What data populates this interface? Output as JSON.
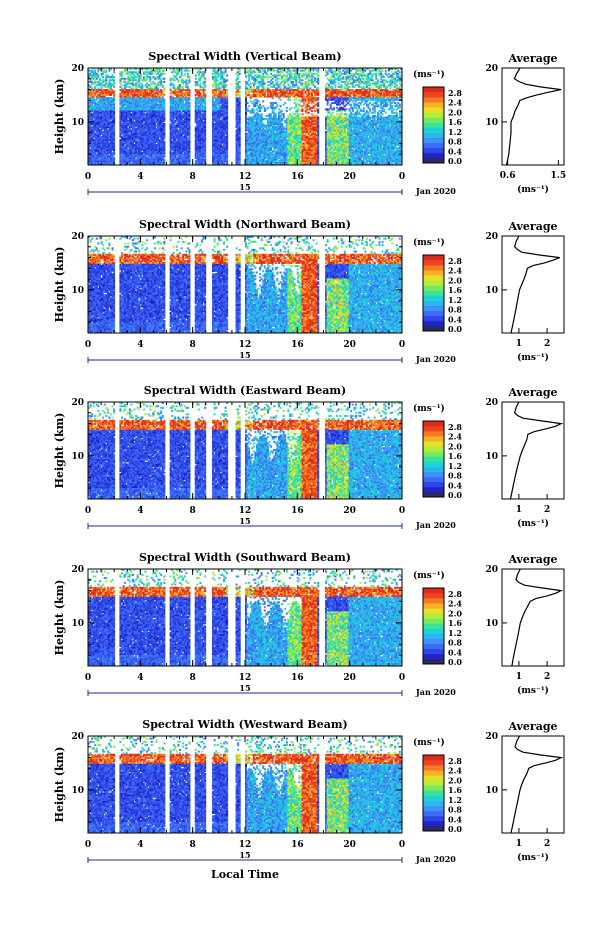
{
  "figure": {
    "date_label": "Jan 2020",
    "xlabel": "Local Time",
    "day_label": "15",
    "ylabel": "Height (km)",
    "colorbar_unit": "(ms⁻¹)",
    "average_title": "Average",
    "average_xlabel": "(ms⁻¹)"
  },
  "colorscale": [
    "#2a2a5c",
    "#1e24c8",
    "#2f46e6",
    "#3e6cf4",
    "#3d93f6",
    "#2cb6ef",
    "#1ed4d2",
    "#3ae29a",
    "#74eb5e",
    "#b4ec3a",
    "#e6de2a",
    "#f7b226",
    "#f57a22",
    "#ec4420",
    "#de2a1c"
  ],
  "chart_data": [
    {
      "type": "heatmap",
      "title": "Spectral Width (Vertical Beam)",
      "xlim": [
        0,
        24
      ],
      "ylim": [
        2,
        20
      ],
      "xticks": [
        "0",
        "4",
        "8",
        "12",
        "16",
        "20",
        "0"
      ],
      "yticks": [
        "20",
        "10"
      ],
      "colorbar_ticks": [
        "2.8",
        "2.4",
        "2.0",
        "1.6",
        "1.2",
        "0.8",
        "0.4",
        "0.0"
      ],
      "average": {
        "xticks": [
          "0.6",
          "1.5"
        ],
        "xlim": [
          0.5,
          1.6
        ],
        "height": [
          2,
          4,
          6,
          8,
          10,
          11,
          12,
          13,
          14,
          14.5,
          15,
          15.5,
          16,
          16.5,
          17,
          17.5,
          18,
          19,
          20
        ],
        "values": [
          0.58,
          0.62,
          0.64,
          0.66,
          0.66,
          0.7,
          0.73,
          0.78,
          0.82,
          0.95,
          1.12,
          1.32,
          1.55,
          1.18,
          0.92,
          0.8,
          0.72,
          0.76,
          0.82
        ]
      }
    },
    {
      "type": "heatmap",
      "title": "Spectral Width (Northward Beam)",
      "xlim": [
        0,
        24
      ],
      "ylim": [
        2,
        20
      ],
      "xticks": [
        "0",
        "4",
        "8",
        "12",
        "16",
        "20",
        "0"
      ],
      "yticks": [
        "20",
        "10"
      ],
      "colorbar_ticks": [
        "2.8",
        "2.4",
        "2.0",
        "1.6",
        "1.2",
        "0.8",
        "0.4",
        "0.0"
      ],
      "average": {
        "xticks": [
          "1",
          "2"
        ],
        "xlim": [
          0.4,
          2.6
        ],
        "height": [
          2,
          4,
          6,
          8,
          10,
          11,
          12,
          13,
          14,
          14.5,
          15,
          15.5,
          16,
          16.5,
          17,
          17.5,
          18,
          19,
          20
        ],
        "values": [
          0.72,
          0.8,
          0.88,
          0.95,
          1.02,
          1.1,
          1.18,
          1.25,
          1.3,
          1.5,
          1.9,
          2.2,
          2.45,
          1.7,
          1.1,
          0.95,
          0.85,
          0.9,
          1.0
        ]
      }
    },
    {
      "type": "heatmap",
      "title": "Spectral Width (Eastward Beam)",
      "xlim": [
        0,
        24
      ],
      "ylim": [
        2,
        20
      ],
      "xticks": [
        "0",
        "4",
        "8",
        "12",
        "16",
        "20",
        "0"
      ],
      "yticks": [
        "20",
        "10"
      ],
      "colorbar_ticks": [
        "2.8",
        "2.4",
        "2.0",
        "1.6",
        "1.2",
        "0.8",
        "0.4",
        "0.0"
      ],
      "average": {
        "xticks": [
          "1",
          "2"
        ],
        "xlim": [
          0.4,
          2.6
        ],
        "height": [
          2,
          4,
          6,
          8,
          10,
          11,
          12,
          13,
          14,
          14.5,
          15,
          15.5,
          16,
          16.5,
          17,
          17.5,
          18,
          19,
          20
        ],
        "values": [
          0.7,
          0.78,
          0.86,
          0.95,
          1.05,
          1.12,
          1.2,
          1.28,
          1.32,
          1.55,
          1.95,
          2.3,
          2.5,
          1.8,
          1.15,
          0.95,
          0.85,
          0.9,
          1.0
        ]
      }
    },
    {
      "type": "heatmap",
      "title": "Spectral Width (Southward Beam)",
      "xlim": [
        0,
        24
      ],
      "ylim": [
        2,
        20
      ],
      "xticks": [
        "0",
        "4",
        "8",
        "12",
        "16",
        "20",
        "0"
      ],
      "yticks": [
        "20",
        "10"
      ],
      "colorbar_ticks": [
        "2.8",
        "2.4",
        "2.0",
        "1.6",
        "1.2",
        "0.8",
        "0.4",
        "0.0"
      ],
      "average": {
        "xticks": [
          "1",
          "2"
        ],
        "xlim": [
          0.4,
          2.6
        ],
        "height": [
          2,
          4,
          6,
          8,
          10,
          11,
          12,
          13,
          14,
          14.5,
          15,
          15.5,
          16,
          16.5,
          17,
          17.5,
          18,
          19,
          20
        ],
        "values": [
          0.75,
          0.82,
          0.9,
          0.98,
          1.05,
          1.12,
          1.2,
          1.3,
          1.4,
          1.6,
          2.0,
          2.3,
          2.5,
          1.8,
          1.2,
          1.0,
          0.9,
          0.95,
          1.05
        ]
      }
    },
    {
      "type": "heatmap",
      "title": "Spectral Width (Westward Beam)",
      "xlim": [
        0,
        24
      ],
      "ylim": [
        2,
        20
      ],
      "xticks": [
        "0",
        "4",
        "8",
        "12",
        "16",
        "20",
        "0"
      ],
      "yticks": [
        "20",
        "10"
      ],
      "colorbar_ticks": [
        "2.8",
        "2.4",
        "2.0",
        "1.6",
        "1.2",
        "0.8",
        "0.4",
        "0.0"
      ],
      "average": {
        "xticks": [
          "1",
          "2"
        ],
        "xlim": [
          0.4,
          2.6
        ],
        "height": [
          2,
          4,
          6,
          8,
          10,
          11,
          12,
          13,
          14,
          14.5,
          15,
          15.5,
          16,
          16.5,
          17,
          17.5,
          18,
          19,
          20
        ],
        "values": [
          0.72,
          0.8,
          0.88,
          0.96,
          1.04,
          1.1,
          1.18,
          1.28,
          1.35,
          1.55,
          1.95,
          2.3,
          2.5,
          1.75,
          1.15,
          0.95,
          0.86,
          0.92,
          1.02
        ]
      }
    }
  ]
}
